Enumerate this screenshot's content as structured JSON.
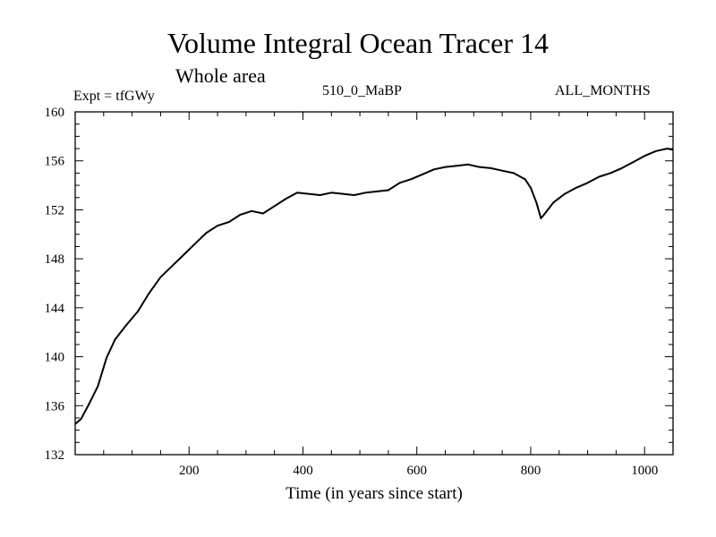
{
  "chart_data": {
    "type": "line",
    "title": "Volume Integral Ocean Tracer 14",
    "subtitle": "Whole area",
    "annotations": {
      "experiment": "Expt = tfGWy",
      "name": "510_0_MaBP",
      "months": "ALL_MONTHS"
    },
    "xlabel": "Time (in years since start)",
    "ylabel": "",
    "xlim": [
      0,
      1050
    ],
    "ylim": [
      132,
      160
    ],
    "xticks": [
      200,
      400,
      600,
      800,
      1000
    ],
    "yticks": [
      132,
      136,
      140,
      144,
      148,
      152,
      156,
      160
    ],
    "grid": false,
    "colors": {
      "line": "#000000",
      "axes": "#000000"
    },
    "series": [
      {
        "x": [
          0,
          10,
          25,
          40,
          55,
          70,
          90,
          110,
          130,
          150,
          170,
          190,
          210,
          230,
          250,
          270,
          290,
          310,
          330,
          350,
          370,
          390,
          410,
          430,
          450,
          470,
          490,
          510,
          530,
          550,
          570,
          590,
          610,
          630,
          650,
          670,
          690,
          710,
          730,
          750,
          770,
          790,
          800,
          810,
          818,
          825,
          840,
          860,
          880,
          900,
          920,
          940,
          960,
          980,
          1000,
          1020,
          1040,
          1050
        ],
        "y": [
          134.5,
          134.9,
          136.2,
          137.6,
          139.9,
          141.4,
          142.6,
          143.7,
          145.2,
          146.5,
          147.4,
          148.3,
          149.2,
          150.1,
          150.7,
          151.0,
          151.6,
          151.9,
          151.7,
          152.3,
          152.9,
          153.4,
          153.3,
          153.2,
          153.4,
          153.3,
          153.2,
          153.4,
          153.5,
          153.6,
          154.2,
          154.5,
          154.9,
          155.3,
          155.5,
          155.6,
          155.7,
          155.5,
          155.4,
          155.2,
          155.0,
          154.5,
          153.8,
          152.6,
          151.3,
          151.7,
          152.6,
          153.3,
          153.8,
          154.2,
          154.7,
          155.0,
          155.4,
          155.9,
          156.4,
          156.8,
          157.0,
          156.9
        ]
      }
    ]
  }
}
